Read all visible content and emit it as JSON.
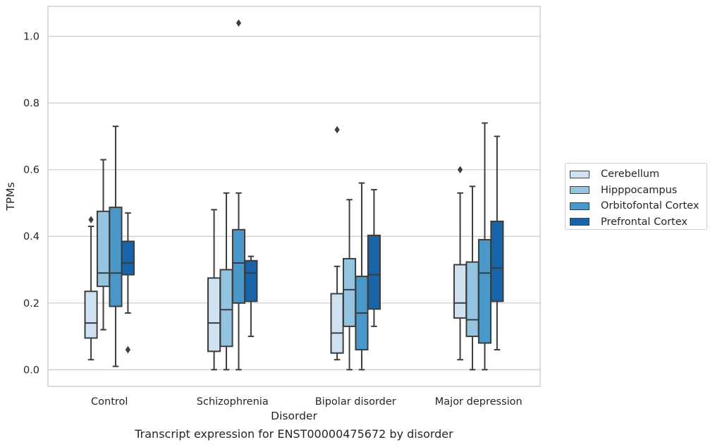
{
  "caption": "Transcript expression for ENST00000475672 by disorder",
  "chart_data": {
    "type": "box",
    "xlabel": "Disorder",
    "ylabel": "TPMs",
    "ylim": [
      -0.05,
      1.09
    ],
    "yticks": [
      0.0,
      0.2,
      0.4,
      0.6,
      0.8,
      1.0
    ],
    "ytick_labels": [
      "0.0",
      "0.2",
      "0.4",
      "0.6",
      "0.8",
      "1.0"
    ],
    "grid": "horizontal",
    "legend_position": "right",
    "categories": [
      "Control",
      "Schizophrenia",
      "Bipolar disorder",
      "Major depression"
    ],
    "series": [
      {
        "name": "Cerebellum",
        "color": "#d0e1f2",
        "boxes": [
          {
            "whisker_low": 0.03,
            "q1": 0.095,
            "median": 0.14,
            "q3": 0.235,
            "whisker_high": 0.43,
            "outliers": [
              0.45
            ]
          },
          {
            "whisker_low": 0.0,
            "q1": 0.055,
            "median": 0.14,
            "q3": 0.275,
            "whisker_high": 0.48,
            "outliers": []
          },
          {
            "whisker_low": 0.03,
            "q1": 0.05,
            "median": 0.11,
            "q3": 0.228,
            "whisker_high": 0.31,
            "outliers": [
              0.72
            ]
          },
          {
            "whisker_low": 0.03,
            "q1": 0.155,
            "median": 0.2,
            "q3": 0.315,
            "whisker_high": 0.53,
            "outliers": [
              0.6
            ]
          }
        ]
      },
      {
        "name": "Hipppocampus",
        "color": "#94c4df",
        "boxes": [
          {
            "whisker_low": 0.12,
            "q1": 0.25,
            "median": 0.29,
            "q3": 0.475,
            "whisker_high": 0.63,
            "outliers": []
          },
          {
            "whisker_low": 0.0,
            "q1": 0.07,
            "median": 0.18,
            "q3": 0.3,
            "whisker_high": 0.53,
            "outliers": []
          },
          {
            "whisker_low": 0.0,
            "q1": 0.13,
            "median": 0.24,
            "q3": 0.333,
            "whisker_high": 0.51,
            "outliers": []
          },
          {
            "whisker_low": 0.0,
            "q1": 0.1,
            "median": 0.15,
            "q3": 0.323,
            "whisker_high": 0.55,
            "outliers": []
          }
        ]
      },
      {
        "name": "Orbitofontal Cortex",
        "color": "#4a98c9",
        "boxes": [
          {
            "whisker_low": 0.01,
            "q1": 0.19,
            "median": 0.29,
            "q3": 0.487,
            "whisker_high": 0.73,
            "outliers": []
          },
          {
            "whisker_low": 0.0,
            "q1": 0.2,
            "median": 0.32,
            "q3": 0.42,
            "whisker_high": 0.53,
            "outliers": [
              1.04
            ]
          },
          {
            "whisker_low": 0.0,
            "q1": 0.06,
            "median": 0.17,
            "q3": 0.28,
            "whisker_high": 0.56,
            "outliers": []
          },
          {
            "whisker_low": 0.0,
            "q1": 0.08,
            "median": 0.29,
            "q3": 0.39,
            "whisker_high": 0.74,
            "outliers": []
          }
        ]
      },
      {
        "name": "Prefrontal Cortex",
        "color": "#1764ab",
        "boxes": [
          {
            "whisker_low": 0.17,
            "q1": 0.285,
            "median": 0.32,
            "q3": 0.385,
            "whisker_high": 0.47,
            "outliers": [
              0.06
            ]
          },
          {
            "whisker_low": 0.1,
            "q1": 0.205,
            "median": 0.29,
            "q3": 0.327,
            "whisker_high": 0.34,
            "outliers": []
          },
          {
            "whisker_low": 0.13,
            "q1": 0.182,
            "median": 0.285,
            "q3": 0.403,
            "whisker_high": 0.54,
            "outliers": []
          },
          {
            "whisker_low": 0.06,
            "q1": 0.205,
            "median": 0.305,
            "q3": 0.445,
            "whisker_high": 0.7,
            "outliers": []
          }
        ]
      }
    ]
  }
}
